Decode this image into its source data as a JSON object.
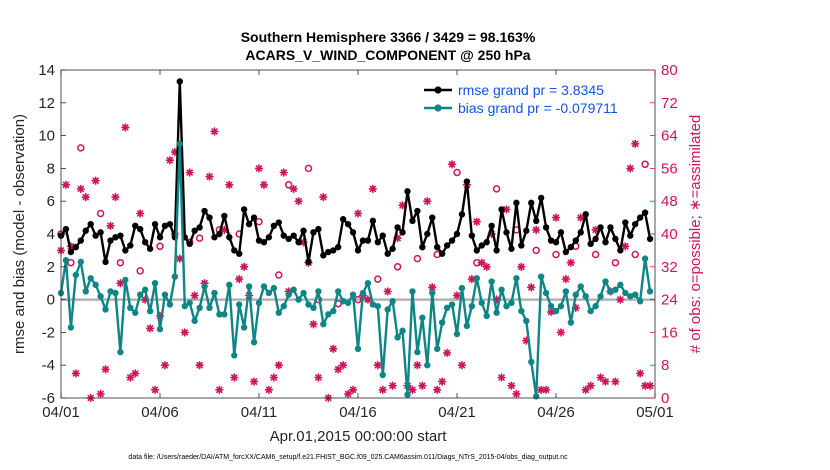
{
  "title_line1": "Southern Hemisphere 3366 / 3429 = 98.163%",
  "title_line2": "ACARS_V_WIND_COMPONENT @ 250 hPa",
  "xlabel": "Apr.01,2015 00:00:00 start",
  "ylabel_left": "rmse and bias (model - observation)",
  "ylabel_right": "# of obs: o=possible; ∗=assimilated",
  "footnote": "data file: /Users/raeder/DAI/ATM_forcXX/CAM6_setup/f.e21.FHIST_BGC.f09_025.CAM6assim.011/Diags_NTrS_2015-04/obs_diag_output.nc",
  "legend": [
    {
      "label": "rmse grand pr = 3.8345",
      "color": "#000000"
    },
    {
      "label": "bias grand pr = -0.079711",
      "color": "#0f8585"
    }
  ],
  "colors": {
    "rmse": "#000000",
    "bias": "#0f8585",
    "obs": "#d0145a",
    "zero_line": "#b3b3b3"
  },
  "chart_data": {
    "type": "line",
    "x_axis": {
      "tick_labels": [
        "04/01",
        "04/06",
        "04/11",
        "04/16",
        "04/21",
        "04/26",
        "05/01"
      ],
      "tick_days": [
        0,
        5,
        10,
        15,
        20,
        25,
        30
      ],
      "range_days": [
        0,
        30
      ]
    },
    "y_left": {
      "range": [
        -6,
        14
      ],
      "ticks": [
        -6,
        -4,
        -2,
        0,
        2,
        4,
        6,
        8,
        10,
        12,
        14
      ]
    },
    "y_right": {
      "range": [
        0,
        80
      ],
      "ticks": [
        0,
        8,
        16,
        24,
        32,
        40,
        48,
        56,
        64,
        72,
        80
      ]
    },
    "grid": false,
    "legend_position": "top-right",
    "series": [
      {
        "name": "rmse grand pr = 3.8345",
        "axis": "left",
        "marker": "filled-circle",
        "x": [
          0.0,
          0.25,
          0.5,
          0.75,
          1.0,
          1.25,
          1.5,
          1.75,
          2.0,
          2.25,
          2.5,
          2.75,
          3.0,
          3.25,
          3.5,
          3.75,
          4.0,
          4.25,
          4.5,
          4.75,
          5.0,
          5.25,
          5.5,
          5.75,
          6.0,
          6.25,
          6.5,
          6.75,
          7.0,
          7.25,
          7.5,
          7.75,
          8.0,
          8.25,
          8.5,
          8.75,
          9.0,
          9.25,
          9.5,
          9.75,
          10.0,
          10.25,
          10.5,
          10.75,
          11.0,
          11.25,
          11.5,
          11.75,
          12.0,
          12.25,
          12.5,
          12.75,
          13.0,
          13.25,
          13.5,
          13.75,
          14.0,
          14.25,
          14.5,
          14.75,
          15.0,
          15.25,
          15.5,
          15.75,
          16.0,
          16.25,
          16.5,
          16.75,
          17.0,
          17.25,
          17.5,
          17.75,
          18.0,
          18.25,
          18.5,
          18.75,
          19.0,
          19.25,
          19.5,
          19.75,
          20.0,
          20.25,
          20.5,
          20.75,
          21.0,
          21.25,
          21.5,
          21.75,
          22.0,
          22.25,
          22.5,
          22.75,
          23.0,
          23.25,
          23.5,
          23.75,
          24.0,
          24.25,
          24.5,
          24.75,
          25.0,
          25.25,
          25.5,
          25.75,
          26.0,
          26.25,
          26.5,
          26.75,
          27.0,
          27.25,
          27.5,
          27.75,
          28.0,
          28.25,
          28.5,
          28.75,
          29.0,
          29.25,
          29.5,
          29.75
        ],
        "values": [
          3.9,
          4.3,
          2.9,
          3.2,
          3.6,
          4.2,
          4.6,
          3.9,
          4.1,
          2.3,
          3.6,
          3.8,
          3.9,
          3.0,
          3.3,
          4.5,
          4.3,
          3.5,
          3.1,
          4.6,
          3.8,
          4.5,
          4.6,
          3.8,
          13.3,
          3.8,
          3.4,
          4.2,
          4.4,
          5.4,
          5.0,
          3.8,
          4.0,
          5.1,
          3.8,
          3.0,
          2.8,
          5.5,
          4.6,
          5.0,
          3.6,
          3.5,
          3.8,
          4.5,
          4.7,
          3.9,
          3.7,
          3.9,
          3.5,
          4.2,
          2.3,
          4.1,
          4.3,
          2.7,
          2.9,
          3.0,
          3.2,
          4.9,
          4.6,
          4.1,
          3.0,
          3.6,
          3.6,
          4.8,
          3.5,
          3.9,
          2.8,
          3.1,
          4.4,
          4.1,
          6.6,
          4.8,
          5.4,
          3.2,
          4.0,
          5.0,
          3.2,
          2.8,
          3.3,
          3.6,
          4.0,
          5.2,
          7.2,
          3.9,
          3.0,
          3.3,
          3.5,
          4.5,
          3.0,
          5.5,
          4.1,
          3.1,
          5.9,
          3.3,
          4.2,
          5.9,
          4.8,
          6.2,
          4.4,
          3.6,
          3.5,
          4.1,
          2.9,
          3.2,
          3.6,
          4.1,
          5.2,
          3.4,
          3.7,
          4.4,
          3.5,
          4.4,
          3.7,
          3.0,
          4.7,
          3.9,
          4.6,
          5.0,
          5.3,
          3.7
        ],
        "color": "#000000"
      },
      {
        "name": "bias grand pr = -0.079711",
        "axis": "left",
        "marker": "filled-circle",
        "x": [
          0.0,
          0.25,
          0.5,
          0.75,
          1.0,
          1.25,
          1.5,
          1.75,
          2.0,
          2.25,
          2.5,
          2.75,
          3.0,
          3.25,
          3.5,
          3.75,
          4.0,
          4.25,
          4.5,
          4.75,
          5.0,
          5.25,
          5.5,
          5.75,
          6.0,
          6.25,
          6.5,
          6.75,
          7.0,
          7.25,
          7.5,
          7.75,
          8.0,
          8.25,
          8.5,
          8.75,
          9.0,
          9.25,
          9.5,
          9.75,
          10.0,
          10.25,
          10.5,
          10.75,
          11.0,
          11.25,
          11.5,
          11.75,
          12.0,
          12.25,
          12.5,
          12.75,
          13.0,
          13.25,
          13.5,
          13.75,
          14.0,
          14.25,
          14.5,
          14.75,
          15.0,
          15.25,
          15.5,
          15.75,
          16.0,
          16.25,
          16.5,
          16.75,
          17.0,
          17.25,
          17.5,
          17.75,
          18.0,
          18.25,
          18.5,
          18.75,
          19.0,
          19.25,
          19.5,
          19.75,
          20.0,
          20.25,
          20.5,
          20.75,
          21.0,
          21.25,
          21.5,
          21.75,
          22.0,
          22.25,
          22.5,
          22.75,
          23.0,
          23.25,
          23.5,
          23.75,
          24.0,
          24.25,
          24.5,
          24.75,
          25.0,
          25.25,
          25.5,
          25.75,
          26.0,
          26.25,
          26.5,
          26.75,
          27.0,
          27.25,
          27.5,
          27.75,
          28.0,
          28.25,
          28.5,
          28.75,
          29.0,
          29.25,
          29.5,
          29.75
        ],
        "values": [
          0.4,
          2.4,
          -1.7,
          1.5,
          2.3,
          0.5,
          1.3,
          0.9,
          0.2,
          -0.6,
          0.5,
          0.4,
          -3.2,
          1.2,
          -0.5,
          -0.8,
          0.3,
          0.6,
          -0.7,
          1.0,
          -1.8,
          0.3,
          -0.3,
          1.4,
          9.5,
          -0.4,
          -0.2,
          -1.3,
          -0.5,
          0.8,
          -0.5,
          0.4,
          -0.9,
          -0.9,
          0.9,
          -3.4,
          -0.3,
          -1.7,
          0.8,
          -2.6,
          -0.2,
          0.8,
          0.4,
          0.7,
          -0.8,
          -0.4,
          0.3,
          0.6,
          0.0,
          0.4,
          -0.3,
          -0.5,
          0.5,
          -1.5,
          -0.9,
          -0.7,
          0.5,
          -0.1,
          -0.2,
          0.3,
          -3.0,
          0.4,
          1.0,
          -0.3,
          -0.4,
          -4.6,
          -0.6,
          -0.1,
          -2.3,
          -1.9,
          -5.8,
          0.5,
          -3.2,
          -1.1,
          -4.0,
          0.4,
          -3.0,
          -1.4,
          -0.5,
          -0.3,
          -2.1,
          0.7,
          -1.6,
          -0.4,
          1.3,
          -0.2,
          -1.0,
          1.1,
          -0.8,
          0.6,
          -0.4,
          -0.2,
          1.3,
          -0.7,
          -1.3,
          -3.8,
          -5.9,
          1.4,
          0.4,
          -0.4,
          -0.7,
          -0.4,
          0.5,
          -1.4,
          0.3,
          0.8,
          0.2,
          -0.7,
          -0.4,
          0.2,
          1.1,
          0.5,
          0.6,
          0.9,
          0.4,
          0.2,
          0.3,
          -0.1,
          2.5,
          0.5
        ],
        "color": "#0f8585"
      },
      {
        "name": "",
        "axis": "right",
        "marker": "open-circle",
        "x": [
          0.0,
          0.5,
          1.0,
          2.0,
          3.0,
          4.0,
          5.0,
          5.75,
          6.5,
          7.0,
          8.0,
          9.0,
          10.0,
          11.0,
          11.5,
          12.5,
          13.0,
          14.0,
          15.0,
          16.0,
          17.0,
          18.0,
          19.0,
          20.0,
          21.0,
          22.0,
          23.0,
          24.0,
          25.0,
          26.0,
          27.0,
          28.0,
          29.0,
          29.5
        ],
        "values": [
          40,
          33,
          61,
          45,
          33,
          31,
          37,
          40,
          38,
          39,
          41,
          40,
          43,
          30,
          52,
          56,
          24,
          23,
          24,
          29,
          32,
          34,
          35,
          55,
          33,
          51,
          41,
          36,
          35,
          37,
          35,
          33,
          35,
          57
        ],
        "color": "#d0145a"
      },
      {
        "name": "",
        "axis": "right",
        "marker": "asterisk",
        "x": [
          0.0,
          0.25,
          0.5,
          0.75,
          1.0,
          1.25,
          1.5,
          1.75,
          2.0,
          2.25,
          2.5,
          2.75,
          3.0,
          3.25,
          3.5,
          3.75,
          4.0,
          4.25,
          4.5,
          4.75,
          5.0,
          5.25,
          5.5,
          5.75,
          6.0,
          6.25,
          6.5,
          6.75,
          7.0,
          7.25,
          7.5,
          7.75,
          8.0,
          8.25,
          8.5,
          8.75,
          9.0,
          9.25,
          9.5,
          9.75,
          10.0,
          10.25,
          10.5,
          10.75,
          11.0,
          11.25,
          11.5,
          11.75,
          12.0,
          12.25,
          12.5,
          12.75,
          13.0,
          13.25,
          13.5,
          13.75,
          14.0,
          14.25,
          14.5,
          14.75,
          15.0,
          15.25,
          15.5,
          15.75,
          16.0,
          16.25,
          16.5,
          16.75,
          17.0,
          17.25,
          17.5,
          17.75,
          18.0,
          18.25,
          18.5,
          18.75,
          19.0,
          19.25,
          19.5,
          19.75,
          20.0,
          20.25,
          20.5,
          20.75,
          21.0,
          21.25,
          21.5,
          21.75,
          22.0,
          22.25,
          22.5,
          22.75,
          23.0,
          23.25,
          23.5,
          23.75,
          24.0,
          24.25,
          24.5,
          24.75,
          25.0,
          25.25,
          25.5,
          25.75,
          26.0,
          26.25,
          26.5,
          26.75,
          27.0,
          27.25,
          27.5,
          27.75,
          28.0,
          28.25,
          28.5,
          28.75,
          29.0,
          29.25,
          29.5,
          29.75
        ],
        "values": [
          36,
          52,
          37,
          6,
          51,
          49,
          0,
          53,
          1,
          7,
          42,
          49,
          28,
          66,
          5,
          6,
          45,
          24,
          17,
          2,
          20,
          8,
          58,
          60,
          34,
          16,
          55,
          25,
          8,
          28,
          54,
          65,
          2,
          41,
          52,
          5,
          29,
          32,
          25,
          4,
          56,
          52,
          2,
          5,
          8,
          55,
          26,
          51,
          48,
          38,
          33,
          18,
          5,
          49,
          0,
          12,
          7,
          8,
          1,
          2,
          45,
          25,
          24,
          51,
          8,
          2,
          26,
          3,
          39,
          47,
          3,
          2,
          8,
          3,
          48,
          27,
          2,
          4,
          11,
          57,
          25,
          8,
          52,
          29,
          43,
          33,
          32,
          40,
          24,
          5,
          46,
          3,
          1,
          32,
          14,
          27,
          41,
          2,
          2,
          21,
          44,
          16,
          29,
          33,
          22,
          44,
          2,
          3,
          41,
          5,
          4,
          26,
          4,
          24,
          37,
          56,
          62,
          6,
          3,
          3
        ],
        "color": "#d0145a"
      }
    ]
  }
}
